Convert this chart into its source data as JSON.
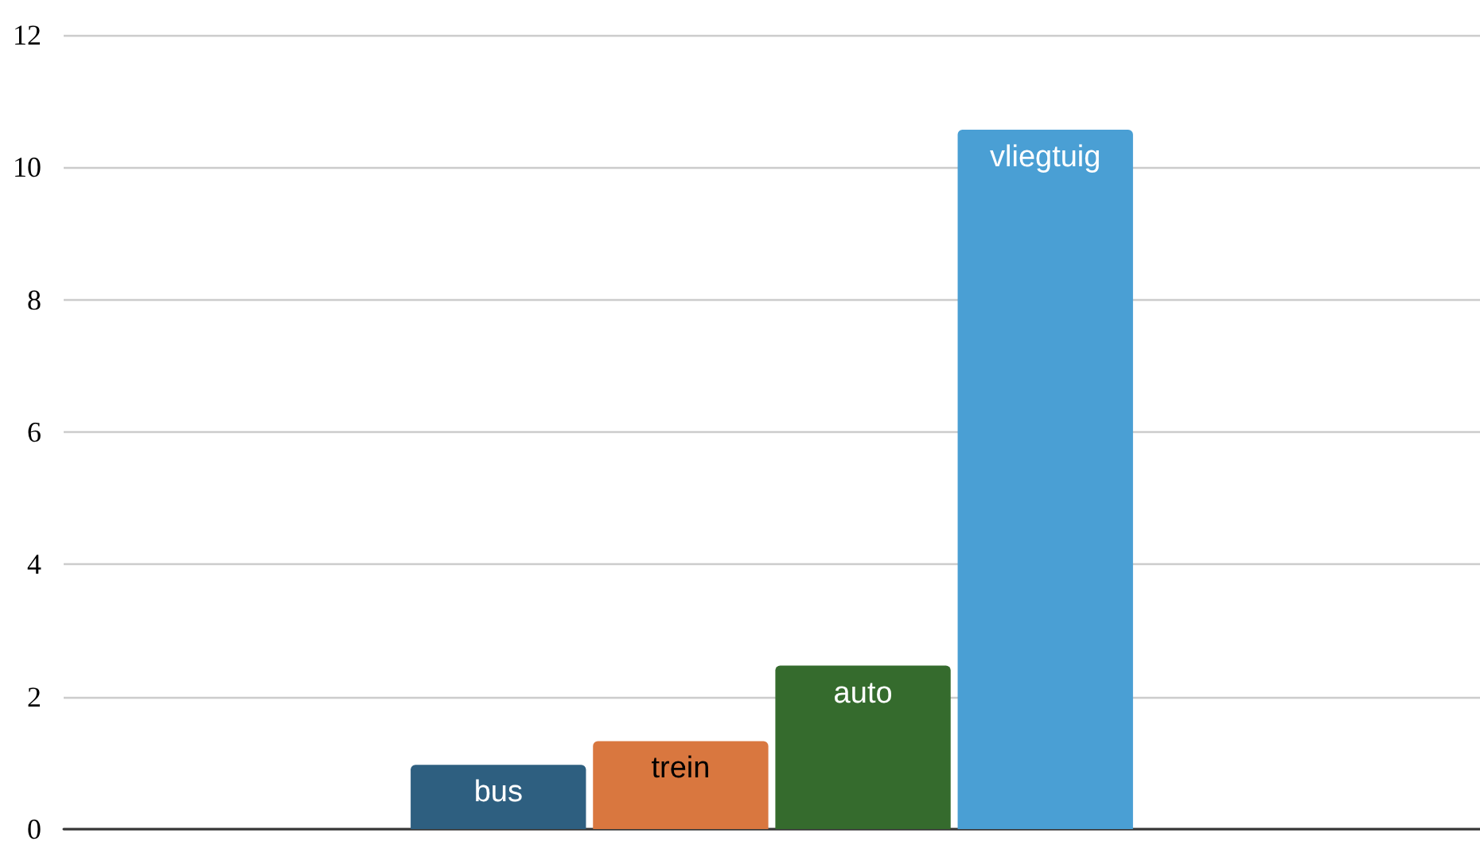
{
  "chart_data": {
    "type": "bar",
    "categories": [
      null
    ],
    "series": [
      {
        "name": "bus",
        "color": "#2e5f80",
        "values": [
          0.97
        ]
      },
      {
        "name": "trein",
        "color": "#d9773f",
        "values": [
          1.33
        ]
      },
      {
        "name": "auto",
        "color": "#356b2d",
        "values": [
          2.47
        ]
      },
      {
        "name": "vliegtuig",
        "color": "#4a9fd4",
        "values": [
          10.57
        ]
      }
    ],
    "ylim": [
      0,
      12
    ],
    "yticks": [
      0,
      2,
      4,
      6,
      8,
      10,
      12
    ],
    "grid": "y",
    "legend": false
  }
}
